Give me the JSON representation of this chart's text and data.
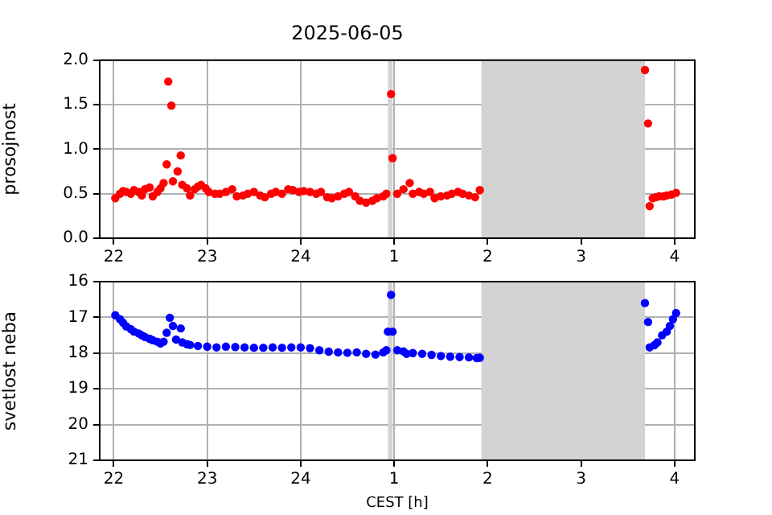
{
  "chart_data": [
    {
      "type": "scatter",
      "title": "2025-06-05",
      "ylabel": "prosojnost",
      "marker": "circle",
      "grid": true,
      "xlim": [
        "2025-06-05T21:51",
        "2025-06-06T04:13"
      ],
      "xticks": [
        {
          "value": "2025-06-05T22:00",
          "label": "22"
        },
        {
          "value": "2025-06-05T23:00",
          "label": "23"
        },
        {
          "value": "2025-06-06T00:00",
          "label": "24"
        },
        {
          "value": "2025-06-06T01:00",
          "label": "1"
        },
        {
          "value": "2025-06-06T02:00",
          "label": "2"
        },
        {
          "value": "2025-06-06T03:00",
          "label": "3"
        },
        {
          "value": "2025-06-06T04:00",
          "label": "4"
        }
      ],
      "ylim": [
        0,
        2
      ],
      "yticks": [
        {
          "value": 0,
          "label": "0.0"
        },
        {
          "value": 0.5,
          "label": "0.5"
        },
        {
          "value": 1,
          "label": "1.0"
        },
        {
          "value": 1.5,
          "label": "1.5"
        },
        {
          "value": 2,
          "label": "2.0"
        }
      ],
      "bands": [
        {
          "axis": "x",
          "from": "2025-06-06T00:56",
          "to": "2025-06-06T00:59",
          "color": "#d3d3d3"
        },
        {
          "axis": "x",
          "from": "2025-06-06T01:56",
          "to": "2025-06-06T03:41",
          "color": "#d3d3d3"
        }
      ],
      "series": [
        {
          "color": "#ff0000",
          "x": [
            "2025-06-05T22:01",
            "2025-06-05T22:04",
            "2025-06-05T22:06",
            "2025-06-05T22:08",
            "2025-06-05T22:11",
            "2025-06-05T22:13",
            "2025-06-05T22:16",
            "2025-06-05T22:18",
            "2025-06-05T22:20",
            "2025-06-05T22:23",
            "2025-06-05T22:25",
            "2025-06-05T22:28",
            "2025-06-05T22:30",
            "2025-06-05T22:32",
            "2025-06-05T22:34",
            "2025-06-05T22:35",
            "2025-06-05T22:37",
            "2025-06-05T22:38",
            "2025-06-05T22:41",
            "2025-06-05T22:43",
            "2025-06-05T22:44",
            "2025-06-05T22:47",
            "2025-06-05T22:49",
            "2025-06-05T22:52",
            "2025-06-05T22:54",
            "2025-06-05T22:56",
            "2025-06-05T22:59",
            "2025-06-05T23:01",
            "2025-06-05T23:05",
            "2025-06-05T23:08",
            "2025-06-05T23:12",
            "2025-06-05T23:16",
            "2025-06-05T23:19",
            "2025-06-05T23:23",
            "2025-06-05T23:26",
            "2025-06-05T23:30",
            "2025-06-05T23:34",
            "2025-06-05T23:37",
            "2025-06-05T23:41",
            "2025-06-05T23:44",
            "2025-06-05T23:48",
            "2025-06-05T23:52",
            "2025-06-05T23:55",
            "2025-06-05T23:59",
            "2025-06-06T00:02",
            "2025-06-06T00:06",
            "2025-06-06T00:10",
            "2025-06-06T00:13",
            "2025-06-06T00:17",
            "2025-06-06T00:20",
            "2025-06-06T00:24",
            "2025-06-06T00:28",
            "2025-06-06T00:31",
            "2025-06-06T00:35",
            "2025-06-06T00:38",
            "2025-06-06T00:42",
            "2025-06-06T00:46",
            "2025-06-06T00:49",
            "2025-06-06T00:53",
            "2025-06-06T00:55",
            "2025-06-06T00:58",
            "2025-06-06T00:59",
            "2025-06-06T01:02",
            "2025-06-06T01:06",
            "2025-06-06T01:10",
            "2025-06-06T01:12",
            "2025-06-06T01:16",
            "2025-06-06T01:19",
            "2025-06-06T01:23",
            "2025-06-06T01:26",
            "2025-06-06T01:30",
            "2025-06-06T01:34",
            "2025-06-06T01:37",
            "2025-06-06T01:41",
            "2025-06-06T01:44",
            "2025-06-06T01:48",
            "2025-06-06T01:52",
            "2025-06-06T01:55",
            "2025-06-06T03:41",
            "2025-06-06T03:43",
            "2025-06-06T03:44",
            "2025-06-06T03:46",
            "2025-06-06T03:48",
            "2025-06-06T03:50",
            "2025-06-06T03:53",
            "2025-06-06T03:55",
            "2025-06-06T03:58",
            "2025-06-06T04:01"
          ],
          "values": [
            0.45,
            0.5,
            0.53,
            0.52,
            0.5,
            0.54,
            0.52,
            0.48,
            0.55,
            0.57,
            0.47,
            0.52,
            0.56,
            0.62,
            0.83,
            1.76,
            1.49,
            0.64,
            0.75,
            0.93,
            0.6,
            0.56,
            0.48,
            0.55,
            0.58,
            0.6,
            0.56,
            0.52,
            0.5,
            0.5,
            0.52,
            0.55,
            0.47,
            0.48,
            0.5,
            0.52,
            0.48,
            0.46,
            0.5,
            0.52,
            0.5,
            0.55,
            0.54,
            0.52,
            0.53,
            0.52,
            0.5,
            0.52,
            0.46,
            0.45,
            0.47,
            0.5,
            0.52,
            0.47,
            0.42,
            0.4,
            0.42,
            0.45,
            0.47,
            0.5,
            1.62,
            0.9,
            0.5,
            0.55,
            0.62,
            0.5,
            0.52,
            0.5,
            0.52,
            0.45,
            0.47,
            0.48,
            0.5,
            0.52,
            0.5,
            0.48,
            0.46,
            0.54,
            1.89,
            1.29,
            0.36,
            0.45,
            0.46,
            0.47,
            0.47,
            0.48,
            0.49,
            0.51
          ]
        }
      ]
    },
    {
      "type": "scatter",
      "ylabel": "svetlost neba",
      "xlabel": "CEST [h]",
      "marker": "circle",
      "grid": true,
      "xlim": [
        "2025-06-05T21:51",
        "2025-06-06T04:13"
      ],
      "xticks": [
        {
          "value": "2025-06-05T22:00",
          "label": "22"
        },
        {
          "value": "2025-06-05T23:00",
          "label": "23"
        },
        {
          "value": "2025-06-06T00:00",
          "label": "24"
        },
        {
          "value": "2025-06-06T01:00",
          "label": "1"
        },
        {
          "value": "2025-06-06T02:00",
          "label": "2"
        },
        {
          "value": "2025-06-06T03:00",
          "label": "3"
        },
        {
          "value": "2025-06-06T04:00",
          "label": "4"
        }
      ],
      "ylim": [
        21,
        16
      ],
      "yticks": [
        16,
        17,
        18,
        19,
        20,
        21
      ],
      "bands": [
        {
          "axis": "x",
          "from": "2025-06-06T00:56",
          "to": "2025-06-06T00:59",
          "color": "#d3d3d3"
        },
        {
          "axis": "x",
          "from": "2025-06-06T01:56",
          "to": "2025-06-06T03:41",
          "color": "#d3d3d3"
        }
      ],
      "series": [
        {
          "color": "#0000ff",
          "x": [
            "2025-06-05T22:01",
            "2025-06-05T22:04",
            "2025-06-05T22:06",
            "2025-06-05T22:08",
            "2025-06-05T22:11",
            "2025-06-05T22:13",
            "2025-06-05T22:16",
            "2025-06-05T22:18",
            "2025-06-05T22:20",
            "2025-06-05T22:23",
            "2025-06-05T22:25",
            "2025-06-05T22:28",
            "2025-06-05T22:30",
            "2025-06-05T22:32",
            "2025-06-05T22:34",
            "2025-06-05T22:36",
            "2025-06-05T22:38",
            "2025-06-05T22:40",
            "2025-06-05T22:43",
            "2025-06-05T22:44",
            "2025-06-05T22:47",
            "2025-06-05T22:49",
            "2025-06-05T22:54",
            "2025-06-05T23:00",
            "2025-06-05T23:06",
            "2025-06-05T23:12",
            "2025-06-05T23:18",
            "2025-06-05T23:24",
            "2025-06-05T23:30",
            "2025-06-05T23:36",
            "2025-06-05T23:42",
            "2025-06-05T23:48",
            "2025-06-05T23:54",
            "2025-06-06T00:00",
            "2025-06-06T00:06",
            "2025-06-06T00:12",
            "2025-06-06T00:18",
            "2025-06-06T00:24",
            "2025-06-06T00:30",
            "2025-06-06T00:36",
            "2025-06-06T00:42",
            "2025-06-06T00:48",
            "2025-06-06T00:53",
            "2025-06-06T00:55",
            "2025-06-06T00:56",
            "2025-06-06T00:58",
            "2025-06-06T00:59",
            "2025-06-06T01:02",
            "2025-06-06T01:06",
            "2025-06-06T01:08",
            "2025-06-06T01:12",
            "2025-06-06T01:18",
            "2025-06-06T01:24",
            "2025-06-06T01:30",
            "2025-06-06T01:36",
            "2025-06-06T01:42",
            "2025-06-06T01:48",
            "2025-06-06T01:53",
            "2025-06-06T01:55",
            "2025-06-06T03:41",
            "2025-06-06T03:43",
            "2025-06-06T03:44",
            "2025-06-06T03:47",
            "2025-06-06T03:49",
            "2025-06-06T03:52",
            "2025-06-06T03:55",
            "2025-06-06T03:57",
            "2025-06-06T03:59",
            "2025-06-06T04:01"
          ],
          "values": [
            16.94,
            17.05,
            17.15,
            17.25,
            17.33,
            17.4,
            17.45,
            17.5,
            17.55,
            17.6,
            17.64,
            17.68,
            17.73,
            17.68,
            17.43,
            17.01,
            17.24,
            17.62,
            17.31,
            17.7,
            17.75,
            17.77,
            17.8,
            17.82,
            17.84,
            17.82,
            17.83,
            17.84,
            17.85,
            17.85,
            17.84,
            17.85,
            17.84,
            17.84,
            17.86,
            17.92,
            17.96,
            17.98,
            17.99,
            17.98,
            18.02,
            18.04,
            17.98,
            17.92,
            17.4,
            16.37,
            17.4,
            17.92,
            17.95,
            18.02,
            18,
            18.02,
            18.05,
            18.08,
            18.1,
            18.11,
            18.12,
            18.14,
            18.13,
            16.6,
            17.13,
            17.84,
            17.78,
            17.7,
            17.5,
            17.4,
            17.24,
            17.05,
            16.88
          ]
        }
      ]
    }
  ]
}
